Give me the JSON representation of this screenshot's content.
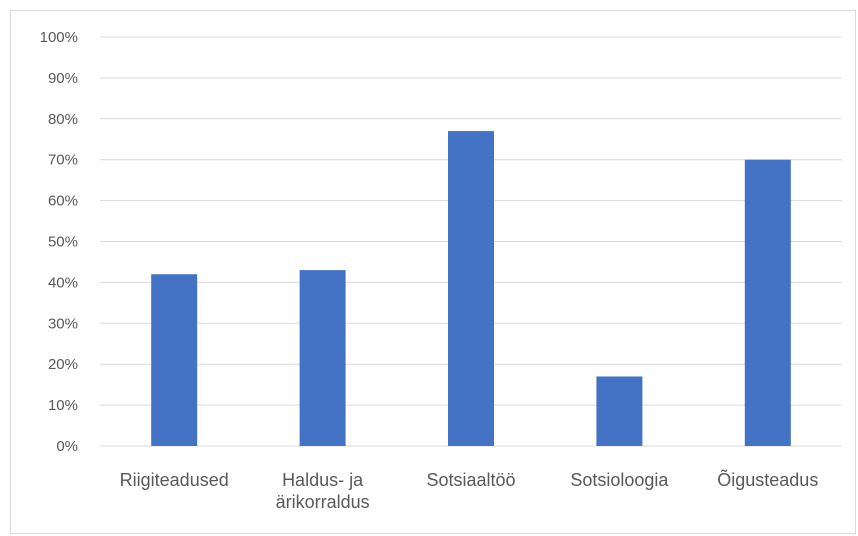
{
  "chart_data": {
    "type": "bar",
    "categories": [
      [
        "Riigiteadused"
      ],
      [
        "Haldus- ja",
        "ärikorraldus"
      ],
      [
        "Sotsiaaltöö"
      ],
      [
        "Sotsioloogia"
      ],
      [
        "Õigusteadus"
      ]
    ],
    "values": [
      0.42,
      0.43,
      0.77,
      0.17,
      0.7
    ],
    "y_ticks": [
      "0%",
      "10%",
      "20%",
      "30%",
      "40%",
      "50%",
      "60%",
      "70%",
      "80%",
      "90%",
      "100%"
    ],
    "ylim": [
      0,
      1
    ],
    "grid": true,
    "legend": "none",
    "bar_color": "#4472c4",
    "grid_color": "#d9d9d9"
  }
}
